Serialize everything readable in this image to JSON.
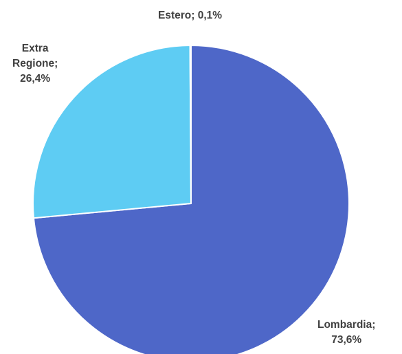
{
  "chart_data": {
    "type": "pie",
    "slices": [
      {
        "label_lines": [
          "Lombardia;",
          "73,6%"
        ],
        "category": "Lombardia",
        "value": 73.6,
        "color": "#4E67C8"
      },
      {
        "label_lines": [
          "Extra",
          "Regione;",
          "26,4%"
        ],
        "category": "Extra Regione",
        "value": 26.4,
        "color": "#5ECCF3"
      },
      {
        "label_lines": [
          "Estero; 0,1%"
        ],
        "category": "Estero",
        "value": 0.1,
        "color": "#A7EA52"
      }
    ],
    "start_angle_deg": 0,
    "direction": "clockwise",
    "legend": "none"
  }
}
